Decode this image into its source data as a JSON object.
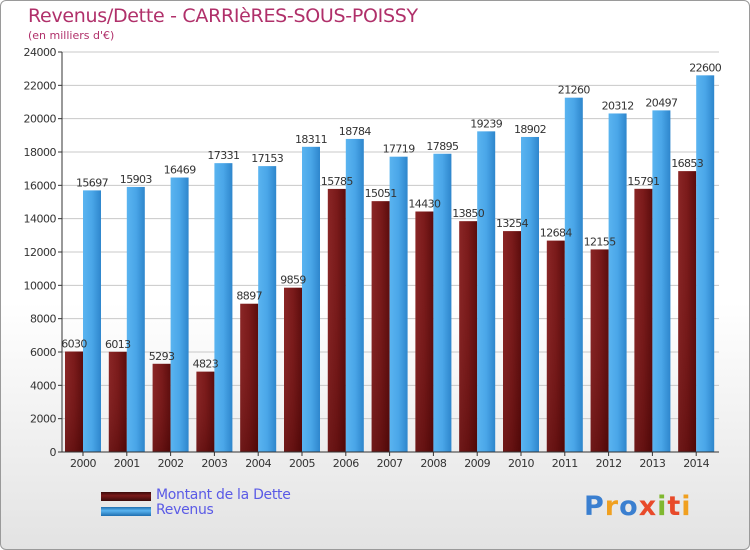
{
  "title": "Revenus/Dette - CARRIèRES-SOUS-POISSY",
  "subtitle": "(en milliers d'€)",
  "logo": {
    "letters": [
      "P",
      "r",
      "o",
      "x",
      "i",
      "t",
      "i"
    ],
    "colors": [
      "#3a7fd0",
      "#f0a020",
      "#3a7fd0",
      "#e84a2a",
      "#80b830",
      "#e84a2a",
      "#f0a020"
    ]
  },
  "colors": {
    "dette": "#7a1a1a",
    "revenus": "#3d9ee0",
    "axis": "#333333",
    "grid": "#c8c8c8",
    "label": "#333333"
  },
  "chart_data": {
    "type": "bar",
    "categories": [
      "2000",
      "2001",
      "2002",
      "2003",
      "2004",
      "2005",
      "2006",
      "2007",
      "2008",
      "2009",
      "2010",
      "2011",
      "2012",
      "2013",
      "2014"
    ],
    "series": [
      {
        "name": "Montant de la Dette",
        "values": [
          6030,
          6013,
          5293,
          4823,
          8897,
          9859,
          15785,
          15051,
          14430,
          13850,
          13254,
          12684,
          12155,
          15791,
          16853
        ],
        "value_labels": [
          "6030",
          "6013",
          "5293",
          "4823",
          "8897",
          "9859",
          "15785",
          "15051",
          "14430",
          "13850",
          "13254",
          "12684",
          "12155",
          "15791",
          "16853"
        ]
      },
      {
        "name": "Revenus",
        "values": [
          15697,
          15903,
          16469,
          17331,
          17153,
          18311,
          18784,
          17719,
          17895,
          19239,
          18902,
          21260,
          20312,
          20497,
          22600
        ],
        "value_labels": [
          "15697",
          "15903",
          "16469",
          "17331",
          "17153",
          "18311",
          "18784",
          "17719",
          "17895",
          "19239",
          "18902",
          "21260",
          "20312",
          "20497",
          "22600"
        ]
      }
    ],
    "yticks": [
      0,
      2000,
      4000,
      6000,
      8000,
      10000,
      12000,
      14000,
      16000,
      18000,
      20000,
      22000,
      24000
    ],
    "ylim": [
      0,
      24000
    ],
    "grid": true,
    "legend": "bottom-left"
  }
}
